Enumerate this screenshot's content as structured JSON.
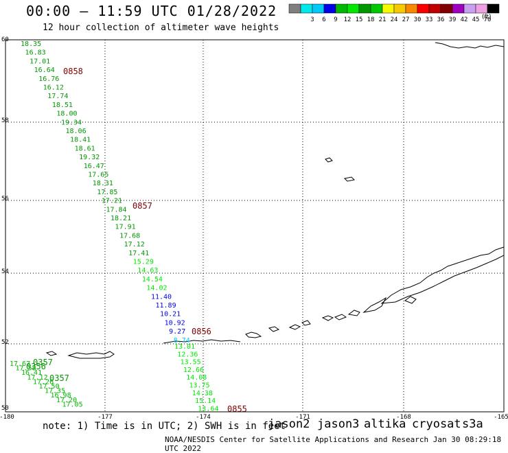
{
  "header": {
    "title": "00:00 — 11:59 UTC 01/28/2022",
    "subtitle": "12 hour collection of altimeter wave heights"
  },
  "legend": {
    "unit": "(ft)",
    "bins": [
      {
        "label": "",
        "color": "#7f7f7f"
      },
      {
        "label": "3",
        "color": "#00e8e8"
      },
      {
        "label": "6",
        "color": "#00c8f8"
      },
      {
        "label": "9",
        "color": "#0000e8"
      },
      {
        "label": "12",
        "color": "#00b800"
      },
      {
        "label": "15",
        "color": "#00e800"
      },
      {
        "label": "18",
        "color": "#009800"
      },
      {
        "label": "21",
        "color": "#00c800"
      },
      {
        "label": "24",
        "color": "#f8f800"
      },
      {
        "label": "27",
        "color": "#f8c800"
      },
      {
        "label": "30",
        "color": "#f88800"
      },
      {
        "label": "33",
        "color": "#f80000"
      },
      {
        "label": "36",
        "color": "#c00000"
      },
      {
        "label": "39",
        "color": "#800000"
      },
      {
        "label": "42",
        "color": "#a000c0"
      },
      {
        "label": "45",
        "color": "#c8a0f0"
      },
      {
        "label": "70",
        "color": "#f0a0e0"
      },
      {
        "label": "",
        "color": "#000000"
      }
    ]
  },
  "axes": {
    "lat_labels": [
      "60",
      "58",
      "56",
      "54",
      "52",
      "50"
    ],
    "lon_labels": [
      "-180",
      "-177",
      "-174",
      "-171",
      "-168",
      "-165"
    ]
  },
  "times": [
    "0858",
    "0857",
    "0856",
    "0855",
    "0357",
    "0356",
    "0357"
  ],
  "track1": {
    "values": [
      "18.35",
      "16.83",
      "17.01",
      "16.64",
      "16.76",
      "16.12",
      "17.74",
      "18.51",
      "18.00",
      "19.34",
      "18.06",
      "18.41",
      "18.61",
      "19.32",
      "16.47",
      "17.65",
      "18.31",
      "17.85",
      "17.21",
      "17.84",
      "18.21",
      "17.91",
      "17.68",
      "17.12",
      "17.41",
      "15.29",
      "14.63",
      "14.54",
      "14.02",
      "11.40",
      "11.89",
      "10.21",
      "10.92",
      "9.27",
      "8.74",
      "13.01",
      "12.36",
      "13.55",
      "12.66",
      "14.08",
      "13.75",
      "14.38",
      "15.14",
      "13.64"
    ],
    "colors": [
      "#009800",
      "#009800",
      "#009800",
      "#009800",
      "#009800",
      "#009800",
      "#009800",
      "#009800",
      "#009800",
      "#009800",
      "#009800",
      "#009800",
      "#009800",
      "#009800",
      "#009800",
      "#009800",
      "#009800",
      "#009800",
      "#009800",
      "#009800",
      "#009800",
      "#009800",
      "#009800",
      "#009800",
      "#009800",
      "#00e800",
      "#00e800",
      "#00e800",
      "#00e800",
      "#0000e8",
      "#0000e8",
      "#0000e8",
      "#0000e8",
      "#0000e8",
      "#00c8f8",
      "#00e800",
      "#00e800",
      "#00e800",
      "#00e800",
      "#00e800",
      "#00e800",
      "#00e800",
      "#00e800",
      "#00e800"
    ]
  },
  "track2": {
    "values": [
      "17.67",
      "17.58",
      "16.41",
      "17.12",
      "17.26",
      "17.50",
      "17.35",
      "16.98",
      "17.20",
      "17.05"
    ]
  },
  "satellites": [
    {
      "name": "jason2",
      "color": "#0000e8"
    },
    {
      "name": "jason3",
      "color": "#009800"
    },
    {
      "name": "altika",
      "color": "#f88800"
    },
    {
      "name": "cryosat",
      "color": "#e00000"
    },
    {
      "name": "s3a",
      "color": "#c00000"
    }
  ],
  "note": "note: 1) Time is in UTC; 2) SWH is in feet",
  "footer": "NOAA/NESDIS Center for Satellite Applications and Research   Jan 30 08:29:18 UTC 2022"
}
